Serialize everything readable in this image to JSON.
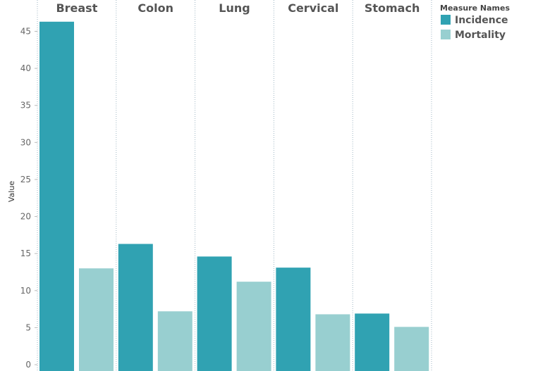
{
  "chart_data": {
    "type": "bar",
    "title": "",
    "xlabel": "",
    "ylabel": "Value",
    "ylim": [
      0,
      46.5
    ],
    "yticks": [
      0,
      5,
      10,
      15,
      20,
      25,
      30,
      35,
      40,
      45
    ],
    "categories": [
      "Breast",
      "Colon",
      "Lung",
      "Cervical",
      "Stomach"
    ],
    "series": [
      {
        "name": "Incidence",
        "color": "#30a2b2",
        "values": [
          46.3,
          16.3,
          14.6,
          13.1,
          6.9
        ]
      },
      {
        "name": "Mortality",
        "color": "#98cfd0",
        "values": [
          13.0,
          7.2,
          11.2,
          6.8,
          5.1
        ]
      }
    ],
    "legend": {
      "title": "Measure Names",
      "position": "top-right"
    },
    "grid": false
  }
}
